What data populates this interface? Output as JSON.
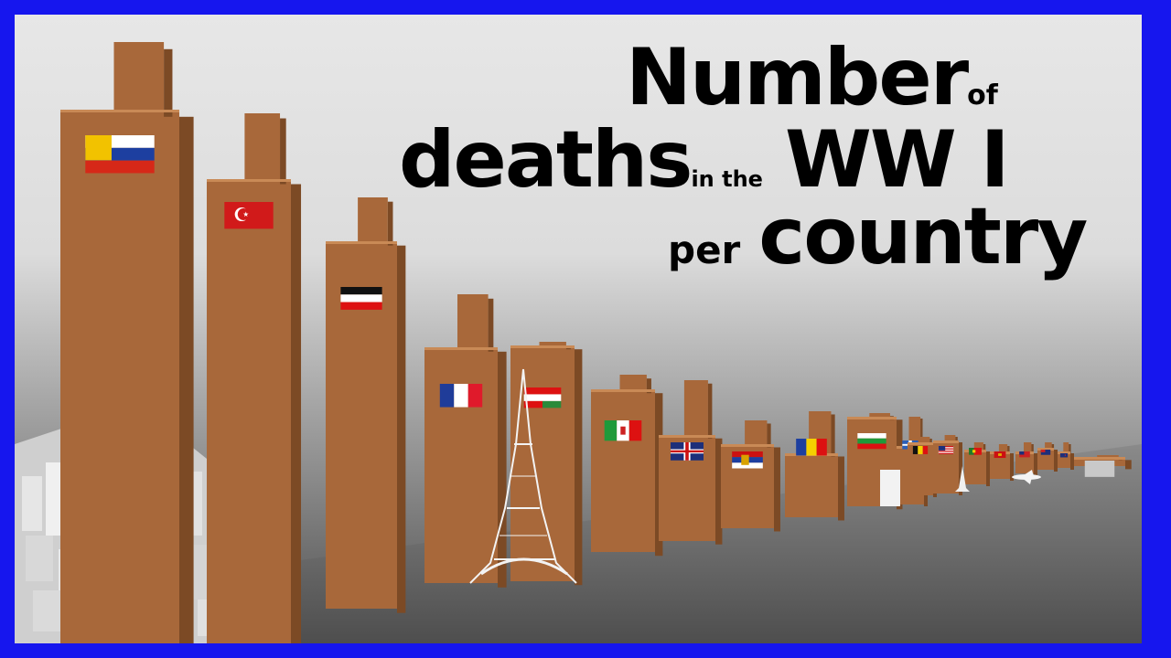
{
  "title": {
    "word1": "Number",
    "word2": "of",
    "word3": "deaths",
    "word4": "in the",
    "word5": "WW I",
    "word6": "per",
    "word7": "country"
  },
  "colors": {
    "frame_border": "#1616ee",
    "bar_front": "#a8683a",
    "bar_side": "#7c4a25",
    "bar_top": "#c98a56",
    "floor": "#5c5c5c"
  },
  "bars": [
    {
      "flag": "russian-empire-flag"
    },
    {
      "flag": "ottoman-empire-flag"
    },
    {
      "flag": "german-empire-flag"
    },
    {
      "flag": "france-flag"
    },
    {
      "flag": "austria-hungary-flag"
    },
    {
      "flag": "italy-flag"
    },
    {
      "flag": "united-kingdom-flag"
    },
    {
      "flag": "serbia-flag"
    },
    {
      "flag": "romania-flag"
    },
    {
      "flag": "bulgaria-flag"
    },
    {
      "flag": "greece-flag"
    },
    {
      "flag": "belgium-flag"
    },
    {
      "flag": "united-states-flag"
    },
    {
      "flag": "portugal-flag"
    },
    {
      "flag": "montenegro-flag"
    },
    {
      "flag": "canada-flag"
    },
    {
      "flag": "australia-flag"
    },
    {
      "flag": "new-zealand-flag"
    },
    {
      "flag": "small-country-flag"
    }
  ],
  "landmarks": [
    "city-skyline",
    "eiffel-tower",
    "phone-booth",
    "statue-of-liberty",
    "airplane"
  ]
}
